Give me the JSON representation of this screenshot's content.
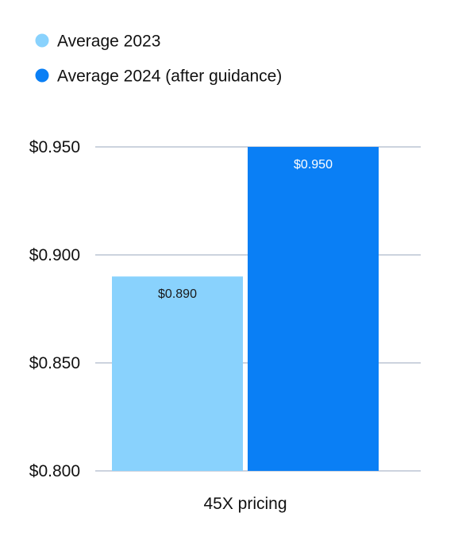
{
  "chart_data": {
    "type": "bar",
    "categories": [
      "45X pricing"
    ],
    "series": [
      {
        "name": "Average 2023",
        "values": [
          0.89
        ],
        "label": "$0.890",
        "color": "#89d2fd"
      },
      {
        "name": "Average 2024 (after guidance)",
        "values": [
          0.95
        ],
        "label": "$0.950",
        "color": "#0a7ff5"
      }
    ],
    "ylim": [
      0.8,
      0.95
    ],
    "yticks": [
      {
        "value": 0.95,
        "label": "$0.950"
      },
      {
        "value": 0.9,
        "label": "$0.900"
      },
      {
        "value": 0.85,
        "label": "$0.850"
      },
      {
        "value": 0.8,
        "label": "$0.800"
      }
    ],
    "grid": true,
    "legend_position": "top-left",
    "title": "",
    "xlabel": "",
    "ylabel": ""
  },
  "colors": {
    "grid": "#9aa7bd",
    "text": "#111111",
    "data_label_on_light": "#1a1a1a",
    "data_label_on_dark": "#ffffff"
  }
}
